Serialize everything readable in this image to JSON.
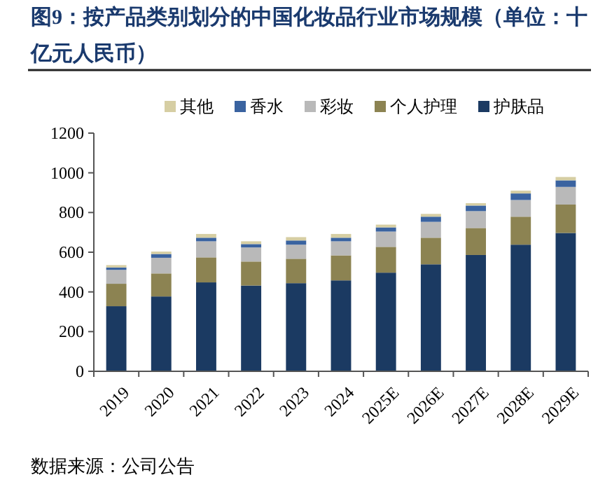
{
  "chart_data": {
    "type": "bar",
    "stacked": true,
    "title": "图9：按产品类别划分的中国化妆品行业市场规模（单位：十亿元人民币）",
    "categories": [
      "2019",
      "2020",
      "2021",
      "2022",
      "2023",
      "2024",
      "2025E",
      "2026E",
      "2027E",
      "2028E",
      "2029E"
    ],
    "series": [
      {
        "name": "护肤品",
        "color": "#1b3a62",
        "values": [
          328,
          377,
          448,
          432,
          444,
          458,
          497,
          539,
          586,
          638,
          697
        ]
      },
      {
        "name": "个人护理",
        "color": "#8c8352",
        "values": [
          113,
          116,
          126,
          121,
          123,
          126,
          130,
          134,
          136,
          141,
          143
        ]
      },
      {
        "name": "彩妆",
        "color": "#b9b9b9",
        "values": [
          70,
          79,
          81,
          71,
          71,
          71,
          77,
          80,
          85,
          84,
          89
        ]
      },
      {
        "name": "香水",
        "color": "#3a63a0",
        "values": [
          12,
          19,
          18,
          17,
          21,
          18,
          21,
          26,
          28,
          33,
          33
        ]
      },
      {
        "name": "其他",
        "color": "#d6cea3",
        "values": [
          12,
          12,
          19,
          14,
          17,
          19,
          14,
          14,
          12,
          14,
          17
        ]
      }
    ],
    "ylim": [
      0,
      1200
    ],
    "yticks": [
      0,
      200,
      400,
      600,
      800,
      1000,
      1200
    ],
    "grid": false,
    "legend": "top",
    "annotations": [
      "数据来源：公司公告"
    ]
  }
}
